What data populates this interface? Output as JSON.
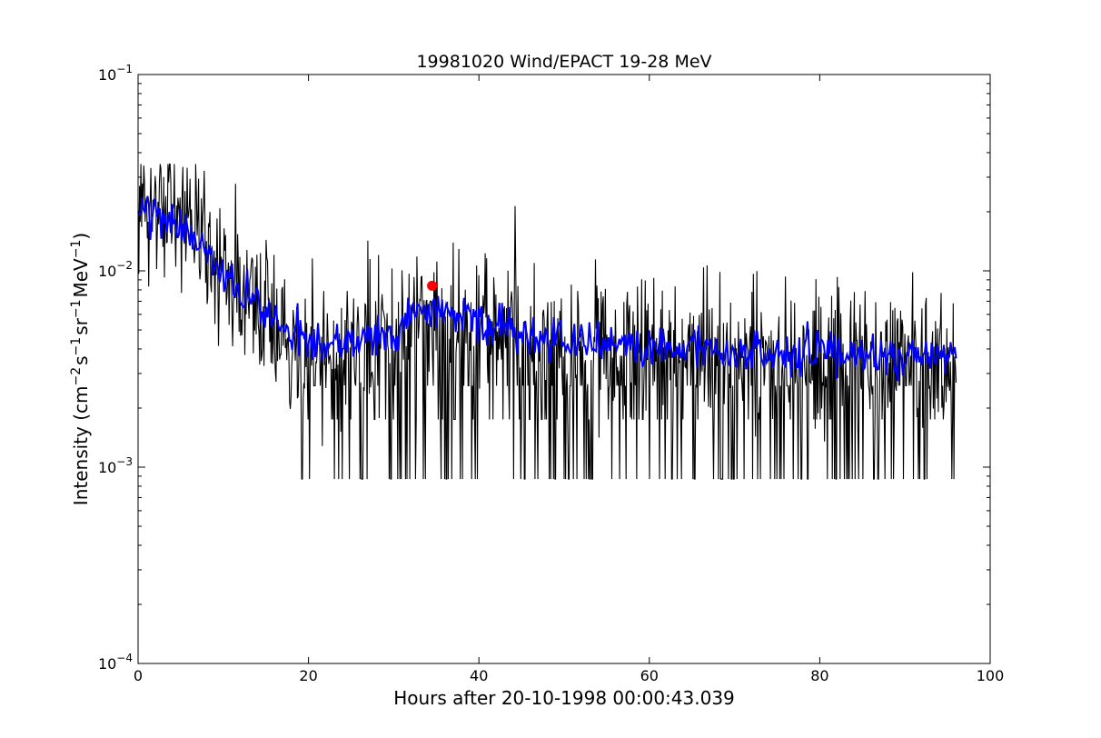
{
  "chart_data": {
    "type": "line",
    "title": "19981020 Wind/EPACT 19-28 MeV",
    "xlabel": "Hours after 20-10-1998 00:00:43.039",
    "ylabel": {
      "prefix": "Intensity (cm",
      "exp1": "−2",
      "mid1": "s",
      "exp2": "−1",
      "mid2": "sr",
      "exp3": "−1",
      "mid3": "MeV",
      "exp4": "−1",
      "suffix": ")"
    },
    "xlim": [
      0,
      100
    ],
    "ylim": [
      0.0001,
      0.1
    ],
    "yscale": "log",
    "grid": false,
    "x_ticks": [
      0,
      20,
      40,
      60,
      80,
      100
    ],
    "x_tick_labels": [
      "0",
      "20",
      "40",
      "60",
      "80",
      "100"
    ],
    "y_ticks": [
      {
        "value": 0.1,
        "base": "10",
        "exp": "−1"
      },
      {
        "value": 0.01,
        "base": "10",
        "exp": "−2"
      },
      {
        "value": 0.001,
        "base": "10",
        "exp": "−3"
      },
      {
        "value": 0.0001,
        "base": "10",
        "exp": "−4"
      }
    ],
    "series": [
      {
        "color": "#000000",
        "style": "raw",
        "x_range": [
          0,
          96
        ],
        "trend": [
          [
            0,
            0.02
          ],
          [
            4,
            0.019
          ],
          [
            7,
            0.015
          ],
          [
            9,
            0.011
          ],
          [
            12,
            0.008
          ],
          [
            15,
            0.006
          ],
          [
            18,
            0.0048
          ],
          [
            21,
            0.0042
          ],
          [
            24,
            0.0042
          ],
          [
            27,
            0.0045
          ],
          [
            30,
            0.005
          ],
          [
            33,
            0.0065
          ],
          [
            36,
            0.006
          ],
          [
            39,
            0.0055
          ],
          [
            42,
            0.0052
          ],
          [
            46,
            0.0048
          ],
          [
            50,
            0.0045
          ],
          [
            55,
            0.0042
          ],
          [
            60,
            0.004
          ],
          [
            65,
            0.004
          ],
          [
            70,
            0.0038
          ],
          [
            75,
            0.0038
          ],
          [
            80,
            0.0037
          ],
          [
            85,
            0.0037
          ],
          [
            90,
            0.0037
          ],
          [
            96,
            0.0037
          ]
        ],
        "discrete_floor": [
          0.00087,
          0.00175,
          0.0026
        ],
        "max_value": 0.035
      },
      {
        "color": "#0000ff",
        "style": "smoothed",
        "x_range": [
          0,
          96
        ],
        "trend": [
          [
            0,
            0.02
          ],
          [
            4,
            0.019
          ],
          [
            7,
            0.015
          ],
          [
            9,
            0.011
          ],
          [
            12,
            0.008
          ],
          [
            15,
            0.006
          ],
          [
            18,
            0.0048
          ],
          [
            21,
            0.0042
          ],
          [
            24,
            0.0042
          ],
          [
            27,
            0.0045
          ],
          [
            30,
            0.005
          ],
          [
            33,
            0.0065
          ],
          [
            36,
            0.006
          ],
          [
            39,
            0.0055
          ],
          [
            42,
            0.0052
          ],
          [
            46,
            0.0048
          ],
          [
            50,
            0.0045
          ],
          [
            55,
            0.0042
          ],
          [
            60,
            0.004
          ],
          [
            65,
            0.004
          ],
          [
            70,
            0.0038
          ],
          [
            75,
            0.0038
          ],
          [
            80,
            0.0037
          ],
          [
            85,
            0.0037
          ],
          [
            90,
            0.0037
          ],
          [
            96,
            0.0037
          ]
        ]
      }
    ],
    "markers": [
      {
        "x": 34.5,
        "y": 0.0084,
        "color": "#ff0000",
        "shape": "circle"
      }
    ]
  }
}
